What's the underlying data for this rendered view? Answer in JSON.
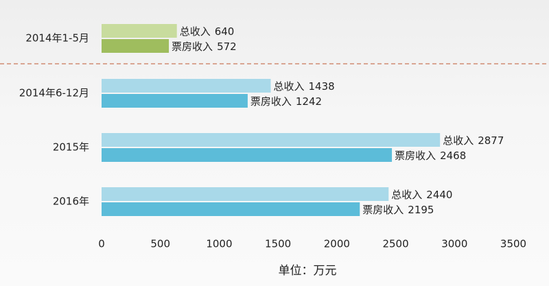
{
  "chart_data": {
    "type": "hbar",
    "categories": [
      "2014年1-5月",
      "2014年6-12月",
      "2015年",
      "2016年"
    ],
    "series": [
      {
        "name": "总收入",
        "colors": [
          "#c8dc9e",
          "#a9d9e9",
          "#a9d9e9",
          "#a9d9e9"
        ],
        "values": [
          640,
          1438,
          2877,
          2440
        ]
      },
      {
        "name": "票房收入",
        "colors": [
          "#9fbd5e",
          "#5cbcd9",
          "#5cbcd9",
          "#5cbcd9"
        ],
        "values": [
          572,
          1242,
          2468,
          2195
        ]
      }
    ],
    "xlim": [
      0,
      3500
    ],
    "xticks": [
      0,
      500,
      1000,
      1500,
      2000,
      2500,
      3000,
      3500
    ],
    "xlabel": "单位：万元"
  }
}
